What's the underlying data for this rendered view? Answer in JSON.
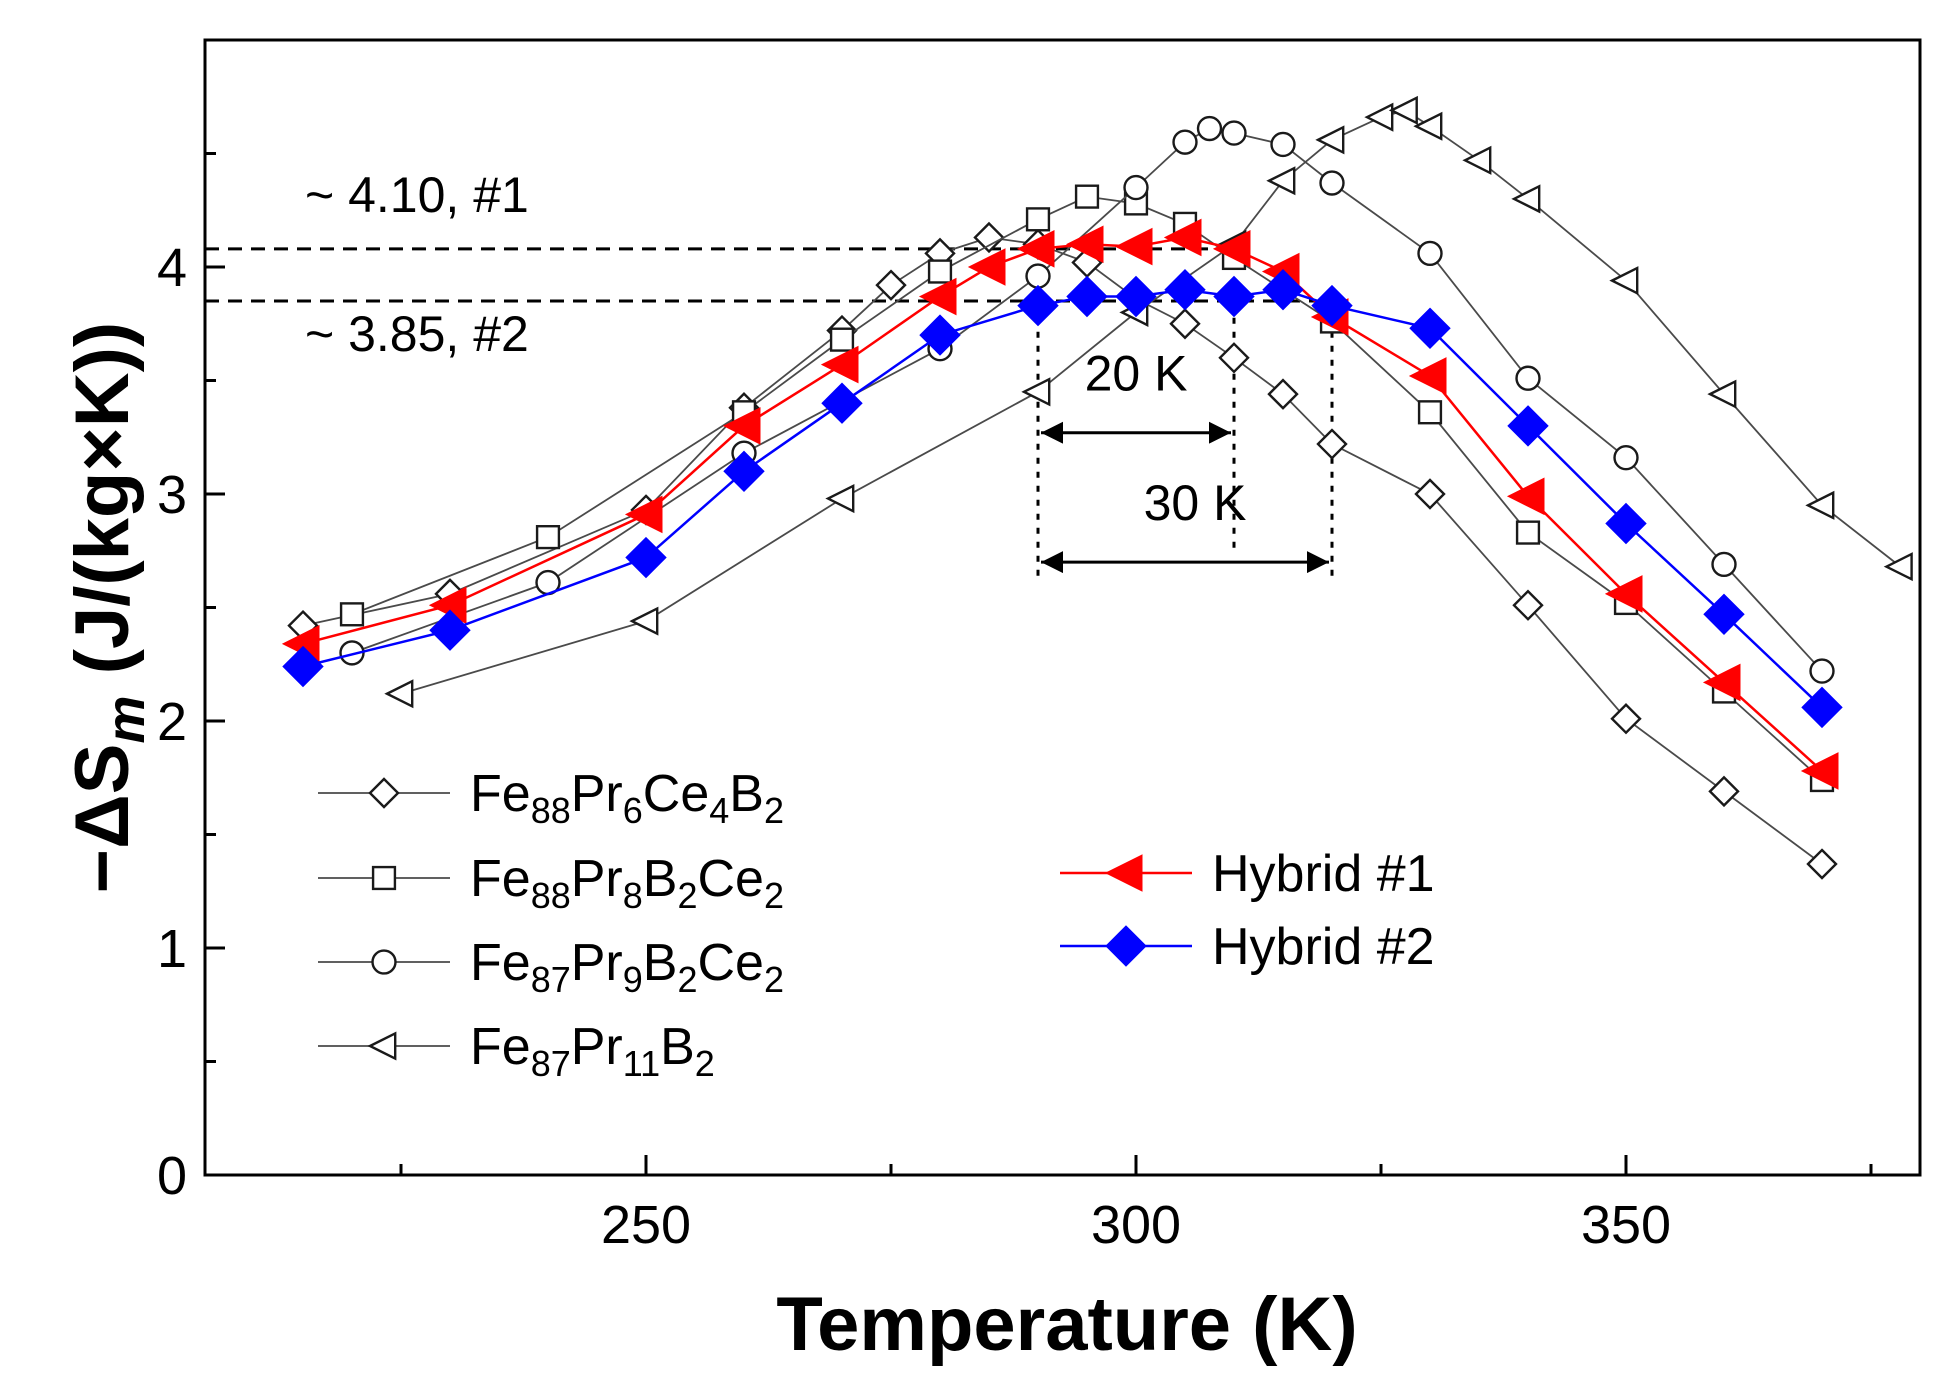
{
  "chart_data": {
    "type": "line",
    "xlabel": "Temperature (K)",
    "ylabel": "−ΔS",
    "ylabel_subscript": "m",
    "ylabel_unit": " (J/(kg×K))",
    "xlim": [
      205,
      380
    ],
    "ylim": [
      0,
      5
    ],
    "xticks": [
      250,
      300,
      350
    ],
    "yticks": [
      0,
      1,
      2,
      3,
      4
    ],
    "minor_xticks": [
      225,
      275,
      325,
      375
    ],
    "minor_yticks": [
      0.5,
      1.5,
      2.5,
      3.5,
      4.5
    ],
    "grid": false,
    "series": [
      {
        "key": "s1",
        "legend": [
          {
            "t": "Fe"
          },
          {
            "t": "88",
            "sub": true
          },
          {
            "t": "Pr"
          },
          {
            "t": "6",
            "sub": true
          },
          {
            "t": "Ce"
          },
          {
            "t": "4",
            "sub": true
          },
          {
            "t": "B"
          },
          {
            "t": "2",
            "sub": true
          }
        ],
        "marker": "diamond",
        "filled": false,
        "color": "#4a4a4a",
        "x": [
          215,
          230,
          250,
          260,
          270,
          275,
          280,
          285,
          290,
          295,
          300,
          305,
          310,
          315,
          320,
          330,
          340,
          350,
          360,
          370
        ],
        "y": [
          2.42,
          2.56,
          2.93,
          3.38,
          3.72,
          3.92,
          4.06,
          4.13,
          4.1,
          4.02,
          3.86,
          3.75,
          3.6,
          3.44,
          3.22,
          3.0,
          2.51,
          2.01,
          1.69,
          1.37
        ]
      },
      {
        "key": "s2",
        "legend": [
          {
            "t": "Fe"
          },
          {
            "t": "88",
            "sub": true
          },
          {
            "t": "Pr"
          },
          {
            "t": "8",
            "sub": true
          },
          {
            "t": "B"
          },
          {
            "t": "2",
            "sub": true
          },
          {
            "t": "Ce"
          },
          {
            "t": "2",
            "sub": true
          }
        ],
        "marker": "square",
        "filled": false,
        "color": "#4a4a4a",
        "x": [
          220,
          240,
          260,
          270,
          280,
          290,
          295,
          300,
          305,
          310,
          320,
          330,
          340,
          350,
          360,
          370
        ],
        "y": [
          2.47,
          2.81,
          3.36,
          3.68,
          3.98,
          4.21,
          4.31,
          4.28,
          4.19,
          4.04,
          3.76,
          3.36,
          2.83,
          2.52,
          2.13,
          1.74
        ]
      },
      {
        "key": "s3",
        "legend": [
          {
            "t": "Fe"
          },
          {
            "t": "87",
            "sub": true
          },
          {
            "t": "Pr"
          },
          {
            "t": "9",
            "sub": true
          },
          {
            "t": "B"
          },
          {
            "t": "2",
            "sub": true
          },
          {
            "t": "Ce"
          },
          {
            "t": "2",
            "sub": true
          }
        ],
        "marker": "circle",
        "filled": false,
        "color": "#4a4a4a",
        "x": [
          220,
          240,
          260,
          280,
          290,
          300,
          305,
          307.5,
          310,
          315,
          320,
          330,
          340,
          350,
          360,
          370
        ],
        "y": [
          2.3,
          2.61,
          3.18,
          3.64,
          3.96,
          4.35,
          4.55,
          4.61,
          4.59,
          4.54,
          4.37,
          4.06,
          3.51,
          3.16,
          2.69,
          2.22
        ]
      },
      {
        "key": "s4",
        "legend": [
          {
            "t": "Fe"
          },
          {
            "t": "87",
            "sub": true
          },
          {
            "t": "Pr"
          },
          {
            "t": "11",
            "sub": true
          },
          {
            "t": "B"
          },
          {
            "t": "2",
            "sub": true
          }
        ],
        "marker": "triangle-left",
        "filled": false,
        "color": "#4a4a4a",
        "x": [
          225,
          250,
          270,
          290,
          300,
          310,
          315,
          320,
          325,
          327.5,
          330,
          335,
          340,
          350,
          360,
          370,
          378
        ],
        "y": [
          2.12,
          2.44,
          2.98,
          3.45,
          3.8,
          4.1,
          4.38,
          4.56,
          4.66,
          4.69,
          4.62,
          4.47,
          4.3,
          3.94,
          3.44,
          2.95,
          2.68
        ]
      },
      {
        "key": "h1",
        "legend": [
          {
            "t": "Hybrid #1"
          }
        ],
        "marker": "triangle-left",
        "filled": true,
        "color": "#ff0000",
        "x": [
          215,
          230,
          250,
          260,
          270,
          280,
          285,
          290,
          295,
          300,
          305,
          310,
          315,
          320,
          330,
          340,
          350,
          360,
          370
        ],
        "y": [
          2.34,
          2.51,
          2.91,
          3.3,
          3.57,
          3.87,
          4.0,
          4.08,
          4.1,
          4.09,
          4.13,
          4.08,
          3.98,
          3.78,
          3.52,
          2.99,
          2.56,
          2.17,
          1.78
        ]
      },
      {
        "key": "h2",
        "legend": [
          {
            "t": "Hybrid #2"
          }
        ],
        "marker": "diamond",
        "filled": true,
        "color": "#0000ff",
        "x": [
          215,
          230,
          250,
          260,
          270,
          280,
          290,
          295,
          300,
          305,
          310,
          315,
          320,
          330,
          340,
          350,
          360,
          370
        ],
        "y": [
          2.24,
          2.4,
          2.72,
          3.1,
          3.4,
          3.7,
          3.83,
          3.87,
          3.87,
          3.9,
          3.87,
          3.9,
          3.83,
          3.73,
          3.3,
          2.87,
          2.47,
          2.06
        ]
      }
    ],
    "annotations": {
      "h_line_1": {
        "y": 4.08,
        "label": "~ 4.10, #1"
      },
      "h_line_2": {
        "y": 3.85,
        "label": "~ 3.85, #2"
      },
      "span_20": {
        "x1": 290,
        "x2": 310,
        "label": "20 K"
      },
      "span_30": {
        "x1": 290,
        "x2": 320,
        "label": "30 K"
      }
    }
  }
}
